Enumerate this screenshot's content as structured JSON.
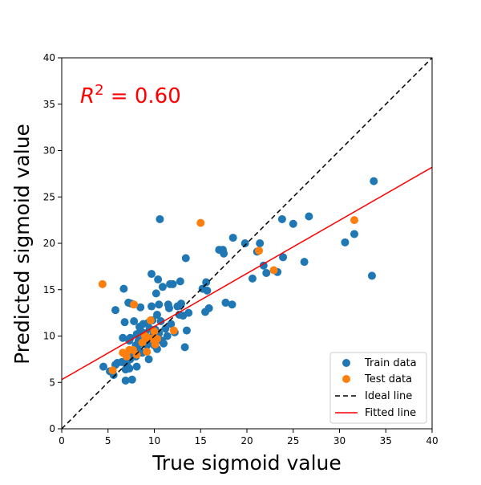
{
  "chart_data": {
    "type": "scatter",
    "xlabel": "True sigmoid value",
    "ylabel": "Predicted sigmoid value",
    "xlim": [
      0,
      40
    ],
    "ylim": [
      0,
      40
    ],
    "x_ticks": [
      "0",
      "5",
      "10",
      "15",
      "20",
      "25",
      "30",
      "35",
      "40"
    ],
    "y_ticks": [
      "0",
      "5",
      "10",
      "15",
      "20",
      "25",
      "30",
      "35",
      "40"
    ],
    "grid": false,
    "legend_position": "lower-right",
    "annotation": {
      "text_parts": {
        "r": "R",
        "exp": "2",
        "value": " = 0.60"
      },
      "color": "#ff0000"
    },
    "series": [
      {
        "name": "Train data",
        "kind": "scatter",
        "color": "#1f77b4",
        "points": [
          [
            4.5,
            6.7
          ],
          [
            5.2,
            6.2
          ],
          [
            5.6,
            5.8
          ],
          [
            5.8,
            6.9
          ],
          [
            5.8,
            12.8
          ],
          [
            6.0,
            7.1
          ],
          [
            6.5,
            7.2
          ],
          [
            6.6,
            9.8
          ],
          [
            6.7,
            15.1
          ],
          [
            6.8,
            11.5
          ],
          [
            6.9,
            6.4
          ],
          [
            6.9,
            5.2
          ],
          [
            7.0,
            7.0
          ],
          [
            7.1,
            8.1
          ],
          [
            7.2,
            13.6
          ],
          [
            7.3,
            9.5
          ],
          [
            7.3,
            6.5
          ],
          [
            7.4,
            9.8
          ],
          [
            7.4,
            7.5
          ],
          [
            7.5,
            13.5
          ],
          [
            7.6,
            5.3
          ],
          [
            7.6,
            8.2
          ],
          [
            7.8,
            11.6
          ],
          [
            8.0,
            9.0
          ],
          [
            8.0,
            7.8
          ],
          [
            8.1,
            6.7
          ],
          [
            8.1,
            10.2
          ],
          [
            8.2,
            8.5
          ],
          [
            8.3,
            9.5
          ],
          [
            8.4,
            11.0
          ],
          [
            8.5,
            13.1
          ],
          [
            8.5,
            10.6
          ],
          [
            8.6,
            9.2
          ],
          [
            8.7,
            8.2
          ],
          [
            8.8,
            11.3
          ],
          [
            8.9,
            9.9
          ],
          [
            9.0,
            10.3
          ],
          [
            9.1,
            9.7
          ],
          [
            9.2,
            9.0
          ],
          [
            9.3,
            11.4
          ],
          [
            9.4,
            7.5
          ],
          [
            9.5,
            10.8
          ],
          [
            9.6,
            9.3
          ],
          [
            9.7,
            13.2
          ],
          [
            9.7,
            16.7
          ],
          [
            9.8,
            11.7
          ],
          [
            9.9,
            10.2
          ],
          [
            10.0,
            9.0
          ],
          [
            10.1,
            10.7
          ],
          [
            10.2,
            14.6
          ],
          [
            10.3,
            12.3
          ],
          [
            10.3,
            8.6
          ],
          [
            10.4,
            16.1
          ],
          [
            10.5,
            13.4
          ],
          [
            10.5,
            10.3
          ],
          [
            10.6,
            22.6
          ],
          [
            10.7,
            11.6
          ],
          [
            10.8,
            9.5
          ],
          [
            10.9,
            15.3
          ],
          [
            11.0,
            9.2
          ],
          [
            11.2,
            10.8
          ],
          [
            11.4,
            10.0
          ],
          [
            11.5,
            13.4
          ],
          [
            11.6,
            13.0
          ],
          [
            11.7,
            15.6
          ],
          [
            11.8,
            11.3
          ],
          [
            12.0,
            15.6
          ],
          [
            12.2,
            10.4
          ],
          [
            12.5,
            13.2
          ],
          [
            12.7,
            12.3
          ],
          [
            12.8,
            15.9
          ],
          [
            12.9,
            13.5
          ],
          [
            13.1,
            12.2
          ],
          [
            13.3,
            8.8
          ],
          [
            13.4,
            18.4
          ],
          [
            13.5,
            10.6
          ],
          [
            13.7,
            12.5
          ],
          [
            15.2,
            15.1
          ],
          [
            15.5,
            12.6
          ],
          [
            15.6,
            15.8
          ],
          [
            15.7,
            14.9
          ],
          [
            15.9,
            13.0
          ],
          [
            17.0,
            19.3
          ],
          [
            17.4,
            19.3
          ],
          [
            17.5,
            18.9
          ],
          [
            17.7,
            13.6
          ],
          [
            18.4,
            13.4
          ],
          [
            18.5,
            20.6
          ],
          [
            19.8,
            20.0
          ],
          [
            20.6,
            16.2
          ],
          [
            21.1,
            19.1
          ],
          [
            21.4,
            20.0
          ],
          [
            21.8,
            17.6
          ],
          [
            22.1,
            16.8
          ],
          [
            23.3,
            16.9
          ],
          [
            23.8,
            22.6
          ],
          [
            23.9,
            18.5
          ],
          [
            25.0,
            22.1
          ],
          [
            26.2,
            18.0
          ],
          [
            26.7,
            22.9
          ],
          [
            30.6,
            20.1
          ],
          [
            31.6,
            21.0
          ],
          [
            33.5,
            16.5
          ],
          [
            33.7,
            26.7
          ]
        ]
      },
      {
        "name": "Test data",
        "kind": "scatter",
        "color": "#ff7f0e",
        "points": [
          [
            4.4,
            15.6
          ],
          [
            5.5,
            6.3
          ],
          [
            6.6,
            8.2
          ],
          [
            7.0,
            7.8
          ],
          [
            7.3,
            8.5
          ],
          [
            7.7,
            8.5
          ],
          [
            7.8,
            13.4
          ],
          [
            8.1,
            8.0
          ],
          [
            8.7,
            9.3
          ],
          [
            9.0,
            10.0
          ],
          [
            9.2,
            8.3
          ],
          [
            9.3,
            9.8
          ],
          [
            9.6,
            11.7
          ],
          [
            9.8,
            9.7
          ],
          [
            10.0,
            10.5
          ],
          [
            10.1,
            9.1
          ],
          [
            10.3,
            9.7
          ],
          [
            12.1,
            10.6
          ],
          [
            15.0,
            22.2
          ],
          [
            21.3,
            19.2
          ],
          [
            22.9,
            17.1
          ],
          [
            31.6,
            22.5
          ]
        ]
      },
      {
        "name": "Ideal line",
        "kind": "line",
        "color": "#000000",
        "dash": "dashed",
        "points": [
          [
            0,
            0
          ],
          [
            40,
            40
          ]
        ]
      },
      {
        "name": "Fitted line",
        "kind": "line",
        "color": "#ff0000",
        "dash": "solid",
        "points": [
          [
            0,
            5.3
          ],
          [
            40,
            28.2
          ]
        ]
      }
    ]
  }
}
